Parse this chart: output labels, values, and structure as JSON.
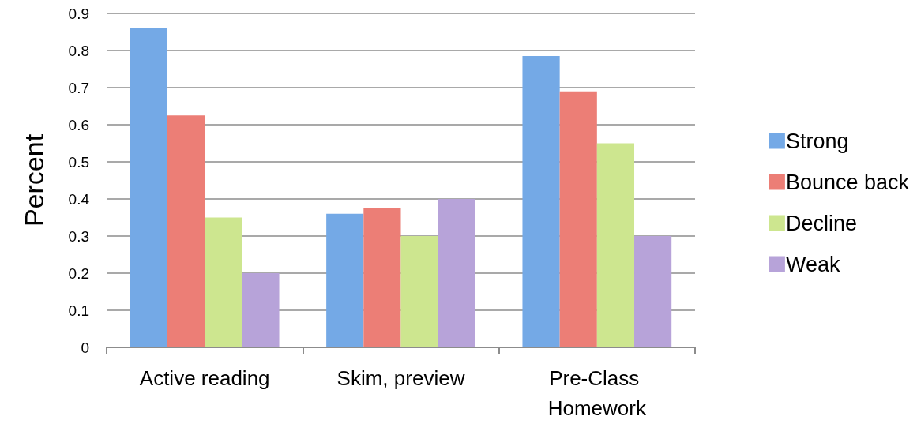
{
  "chart_data": {
    "type": "bar",
    "ylabel": "Percent",
    "categories": [
      "Active reading",
      "Skim, preview",
      "Pre-Class Homework"
    ],
    "series": [
      {
        "name": "Strong",
        "color": "#74a9e6",
        "values": [
          0.86,
          0.36,
          0.785
        ]
      },
      {
        "name": "Bounce back",
        "color": "#ec7e76",
        "values": [
          0.625,
          0.375,
          0.69
        ]
      },
      {
        "name": "Decline",
        "color": "#cde68f",
        "values": [
          0.35,
          0.3,
          0.55
        ]
      },
      {
        "name": "Weak",
        "color": "#b7a3d9",
        "values": [
          0.2,
          0.4,
          0.3
        ]
      }
    ],
    "ylim": [
      0,
      0.9
    ],
    "yticks": [
      0,
      0.1,
      0.2,
      0.3,
      0.4,
      0.5,
      0.6,
      0.7,
      0.8,
      0.9
    ],
    "grid": "y",
    "legend": "right"
  }
}
